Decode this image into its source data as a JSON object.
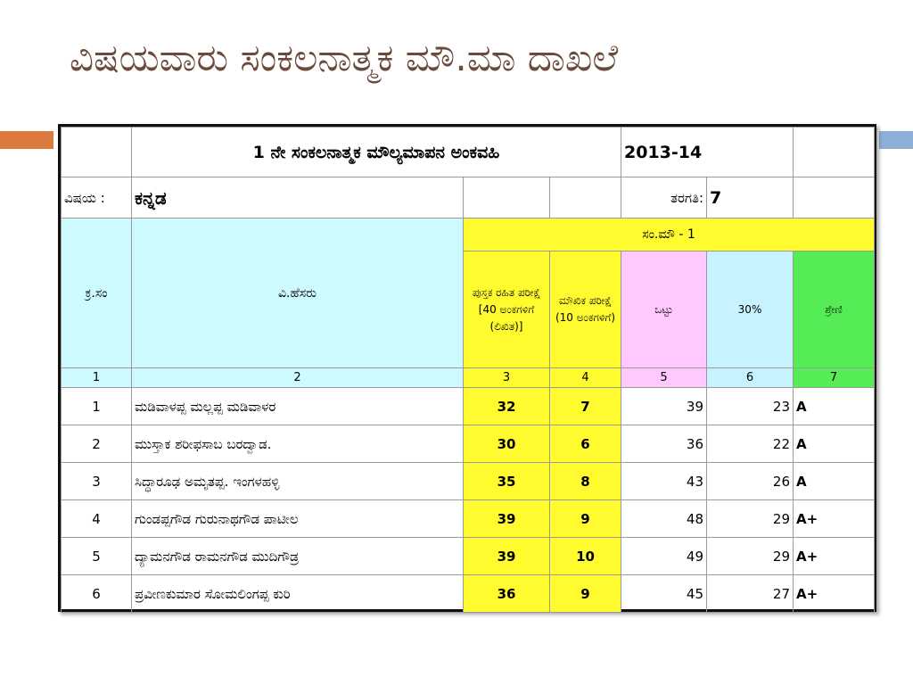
{
  "slide": {
    "title": "ವಿಷಯವಾರು ಸಂಕಲನಾತ್ಮಕ ಮೌ.ಮಾ ದಾಖಲೆ"
  },
  "sheet": {
    "title": "1 ನೇ ಸಂಕಲನಾತ್ಮಕ ಮೌಲ್ಯಮಾಪನ ಅಂಕವಹಿ",
    "year": "2013-14",
    "subject_label": "ವಿಷಯ :",
    "subject_value": "ಕನ್ನಡ",
    "class_label": "ತರಗತಿ:",
    "class_value": "7",
    "headers": {
      "sl_no": "ಕ್ರ.ಸಂ",
      "name": "ವಿ.ಹೆಸರು",
      "group": "ಸಂ.ಮೌ - 1",
      "written": "ಪುಸ್ತಕ ರಹಿತ ಪರೀಕ್ಷೆ [40 ಅಂಕಗಳಿಗೆ (ಲಿಖಿತ)]",
      "oral": "ಮೌಖಿಕ ಪರೀಕ್ಷೆ (10 ಅಂಕಗಳಿಗೆ)",
      "total": "ಒಟ್ಟು",
      "percent": "30%",
      "grade": "ಶ್ರೇಣಿ"
    },
    "column_numbers": [
      "1",
      "2",
      "3",
      "4",
      "5",
      "6",
      "7"
    ],
    "rows": [
      {
        "sn": "1",
        "name": "ಮಡಿವಾಳಪ್ಪ ಮಲ್ಲಪ್ಪ ಮಡಿವಾಳರ",
        "written": "32",
        "oral": "7",
        "total": "39",
        "percent": "23",
        "grade": "A"
      },
      {
        "sn": "2",
        "name": "ಮುಸ್ತಾಕ ಶರೀಫಸಾಬ ಬರದ್ವಾಡ.",
        "written": "30",
        "oral": "6",
        "total": "36",
        "percent": "22",
        "grade": "A"
      },
      {
        "sn": "3",
        "name": "ಸಿದ್ಧಾರೂಢ ಅಮೃತಪ್ಪ. ಇಂಗಳಹಳ್ಳಿ",
        "written": "35",
        "oral": "8",
        "total": "43",
        "percent": "26",
        "grade": "A"
      },
      {
        "sn": "4",
        "name": "ಗುಂಡಪ್ಪಗೌಡ ಗುರುನಾಥಗೌಡ ಪಾಟೀಲ",
        "written": "39",
        "oral": "9",
        "total": "48",
        "percent": "29",
        "grade": "A+"
      },
      {
        "sn": "5",
        "name": "ದ್ಯಾಮನಗೌಡ ರಾಮನಗೌಡ ಮುದಿಗೌಡ್ರ",
        "written": "39",
        "oral": "10",
        "total": "49",
        "percent": "29",
        "grade": "A+"
      },
      {
        "sn": "6",
        "name": "ಪ್ರವೀಣಕುಮಾರ ಸೋಮಲಿಂಗಪ್ಪ ಕುರಿ",
        "written": "36",
        "oral": "9",
        "total": "45",
        "percent": "27",
        "grade": "A+"
      }
    ]
  },
  "colors": {
    "title_text": "#6b4a3c",
    "accent_orange": "#dc7a3e",
    "accent_blue": "#8fb0d6",
    "header_cyan": "#ccfafe",
    "yellow": "#fffb2e",
    "pink": "#ffc8ff",
    "light_blue": "#c6f3ff",
    "green": "#55ec55"
  }
}
